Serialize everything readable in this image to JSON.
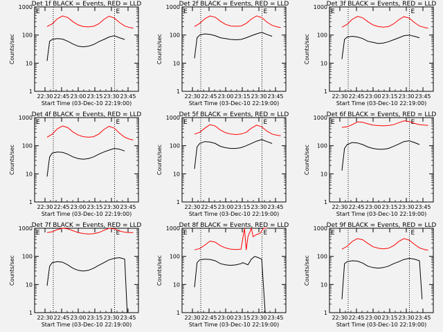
{
  "chart_data": [
    {
      "type": "line",
      "title": "Det 1f BLACK = Events, RED = LLD",
      "xlabel": "Start Time (03-Dec-10 22:19:00)",
      "ylabel": "Counts/sec",
      "ylim": [
        1,
        1000
      ],
      "yscale": "log",
      "x_ticks": [
        "22:30",
        "22:45",
        "23:00",
        "23:15",
        "23:30",
        "23:45"
      ],
      "y_ticks": [
        "1",
        "10",
        "100",
        "1000"
      ],
      "markers": [
        "E",
        "E"
      ],
      "series": [
        {
          "color": "#ff0000",
          "x": [
            0.0,
            0.06,
            0.12,
            0.18,
            0.24,
            0.3,
            0.36,
            0.42,
            0.48,
            0.54,
            0.6,
            0.66,
            0.72,
            0.78,
            0.84,
            0.9,
            0.96,
            1.0
          ],
          "values": [
            200,
            250,
            380,
            480,
            420,
            300,
            230,
            200,
            195,
            205,
            250,
            360,
            470,
            400,
            280,
            210,
            185,
            175
          ]
        },
        {
          "color": "#000000",
          "x": [
            0.0,
            0.03,
            0.06,
            0.12,
            0.18,
            0.24,
            0.3,
            0.36,
            0.42,
            0.48,
            0.54,
            0.6,
            0.66,
            0.72,
            0.78,
            0.84,
            0.9
          ],
          "values": [
            12,
            60,
            70,
            75,
            72,
            60,
            48,
            40,
            38,
            40,
            46,
            58,
            70,
            85,
            95,
            80,
            70
          ]
        }
      ]
    },
    {
      "type": "line",
      "title": "Det 2f BLACK = Events, RED = LLD",
      "xlabel": "Start Time (03-Dec-10 22:19:00)",
      "ylabel": "Counts/sec",
      "ylim": [
        1,
        1000
      ],
      "yscale": "log",
      "x_ticks": [
        "22:30",
        "22:45",
        "23:00",
        "23:15",
        "23:30",
        "23:45"
      ],
      "y_ticks": [
        "1",
        "10",
        "100",
        "1000"
      ],
      "markers": [
        "E",
        "E"
      ],
      "series": [
        {
          "color": "#ff0000",
          "x": [
            0.0,
            0.06,
            0.12,
            0.18,
            0.24,
            0.3,
            0.36,
            0.42,
            0.48,
            0.54,
            0.6,
            0.66,
            0.72,
            0.78,
            0.84,
            0.9,
            0.96,
            1.0
          ],
          "values": [
            200,
            260,
            380,
            480,
            430,
            310,
            240,
            210,
            205,
            210,
            260,
            370,
            480,
            420,
            290,
            220,
            195,
            185
          ]
        },
        {
          "color": "#000000",
          "x": [
            0.0,
            0.03,
            0.06,
            0.12,
            0.18,
            0.24,
            0.3,
            0.36,
            0.42,
            0.48,
            0.54,
            0.6,
            0.66,
            0.72,
            0.78,
            0.84,
            0.9
          ],
          "values": [
            15,
            80,
            100,
            110,
            105,
            95,
            80,
            75,
            70,
            68,
            70,
            80,
            95,
            110,
            125,
            105,
            90
          ]
        }
      ]
    },
    {
      "type": "line",
      "title": "Det 3f BLACK = Events, RED = LLD",
      "xlabel": "Start Time (03-Dec-10 22:19:00)",
      "ylabel": "Counts/sec",
      "ylim": [
        1,
        1000
      ],
      "yscale": "log",
      "x_ticks": [
        "22:30",
        "22:45",
        "23:00",
        "23:15",
        "23:30",
        "23:45"
      ],
      "y_ticks": [
        "1",
        "10",
        "100",
        "1000"
      ],
      "markers": [
        "E",
        "E"
      ],
      "series": [
        {
          "color": "#ff0000",
          "x": [
            0.0,
            0.06,
            0.12,
            0.18,
            0.24,
            0.3,
            0.36,
            0.42,
            0.48,
            0.54,
            0.6,
            0.66,
            0.72,
            0.78,
            0.84,
            0.9,
            0.96,
            1.0
          ],
          "values": [
            190,
            240,
            360,
            460,
            410,
            300,
            230,
            200,
            190,
            200,
            250,
            350,
            450,
            400,
            280,
            210,
            185,
            175
          ]
        },
        {
          "color": "#000000",
          "x": [
            0.0,
            0.03,
            0.06,
            0.12,
            0.18,
            0.24,
            0.3,
            0.36,
            0.42,
            0.48,
            0.54,
            0.6,
            0.66,
            0.72,
            0.78,
            0.84,
            0.9
          ],
          "values": [
            14,
            70,
            85,
            90,
            85,
            75,
            60,
            55,
            50,
            52,
            58,
            68,
            80,
            95,
            100,
            90,
            80
          ]
        }
      ]
    },
    {
      "type": "line",
      "title": "Det 4f BLACK = Events, RED = LLD",
      "xlabel": "Start Time (03-Dec-10 22:19:00)",
      "ylabel": "Counts/sec",
      "ylim": [
        1,
        1000
      ],
      "yscale": "log",
      "x_ticks": [
        "22:30",
        "22:45",
        "23:00",
        "23:15",
        "23:30",
        "23:45"
      ],
      "y_ticks": [
        "1",
        "10",
        "100",
        "1000"
      ],
      "markers": [
        "E",
        "E"
      ],
      "series": [
        {
          "color": "#ff0000",
          "x": [
            0.0,
            0.06,
            0.12,
            0.18,
            0.24,
            0.3,
            0.36,
            0.42,
            0.48,
            0.54,
            0.6,
            0.66,
            0.72,
            0.78,
            0.84,
            0.9,
            0.96,
            1.0
          ],
          "values": [
            200,
            260,
            400,
            500,
            440,
            310,
            240,
            210,
            200,
            210,
            260,
            380,
            490,
            420,
            280,
            200,
            170,
            160
          ]
        },
        {
          "color": "#000000",
          "x": [
            0.0,
            0.03,
            0.06,
            0.12,
            0.18,
            0.24,
            0.3,
            0.36,
            0.42,
            0.48,
            0.54,
            0.6,
            0.66,
            0.72,
            0.78,
            0.84,
            0.9
          ],
          "values": [
            8,
            40,
            55,
            60,
            58,
            50,
            40,
            35,
            33,
            35,
            40,
            50,
            60,
            70,
            80,
            75,
            65
          ]
        }
      ]
    },
    {
      "type": "line",
      "title": "Det 5f BLACK = Events, RED = LLD",
      "xlabel": "Start Time (03-Dec-10 22:19:00)",
      "ylabel": "Counts/sec",
      "ylim": [
        1,
        1000
      ],
      "yscale": "log",
      "x_ticks": [
        "22:30",
        "22:45",
        "23:00",
        "23:15",
        "23:30",
        "23:45"
      ],
      "y_ticks": [
        "1",
        "10",
        "100",
        "1000"
      ],
      "markers": [
        "E",
        "E"
      ],
      "series": [
        {
          "color": "#ff0000",
          "x": [
            0.0,
            0.06,
            0.12,
            0.18,
            0.24,
            0.3,
            0.36,
            0.42,
            0.48,
            0.54,
            0.6,
            0.66,
            0.72,
            0.78,
            0.84,
            0.9,
            0.96,
            1.0
          ],
          "values": [
            260,
            300,
            420,
            560,
            500,
            360,
            290,
            260,
            250,
            260,
            300,
            420,
            540,
            470,
            330,
            260,
            235,
            225
          ]
        },
        {
          "color": "#000000",
          "x": [
            0.0,
            0.03,
            0.06,
            0.12,
            0.18,
            0.24,
            0.3,
            0.36,
            0.42,
            0.48,
            0.54,
            0.6,
            0.66,
            0.72,
            0.78,
            0.84,
            0.9
          ],
          "values": [
            15,
            90,
            120,
            140,
            135,
            120,
            95,
            85,
            80,
            80,
            85,
            100,
            120,
            145,
            165,
            140,
            120
          ]
        }
      ]
    },
    {
      "type": "line",
      "title": "Det 6f BLACK = Events, RED = LLD",
      "xlabel": "Start Time (03-Dec-10 22:19:00)",
      "ylabel": "Counts/sec",
      "ylim": [
        1,
        1000
      ],
      "yscale": "log",
      "x_ticks": [
        "22:30",
        "22:45",
        "23:00",
        "23:15",
        "23:30",
        "23:45"
      ],
      "y_ticks": [
        "1",
        "10",
        "100",
        "1000"
      ],
      "markers": [
        "E",
        "E"
      ],
      "series": [
        {
          "color": "#ff0000",
          "x": [
            0.0,
            0.06,
            0.12,
            0.18,
            0.24,
            0.3,
            0.36,
            0.42,
            0.48,
            0.54,
            0.6,
            0.66,
            0.72,
            0.78,
            0.84,
            0.9,
            0.96,
            1.0
          ],
          "values": [
            450,
            470,
            560,
            700,
            680,
            600,
            540,
            520,
            510,
            520,
            560,
            660,
            760,
            720,
            620,
            560,
            540,
            530
          ]
        },
        {
          "color": "#000000",
          "x": [
            0.0,
            0.03,
            0.06,
            0.12,
            0.18,
            0.24,
            0.3,
            0.36,
            0.42,
            0.48,
            0.54,
            0.6,
            0.66,
            0.72,
            0.78,
            0.84,
            0.9
          ],
          "values": [
            13,
            80,
            110,
            130,
            125,
            110,
            90,
            80,
            75,
            75,
            80,
            95,
            115,
            140,
            150,
            130,
            110
          ]
        }
      ]
    },
    {
      "type": "line",
      "title": "Det 7f BLACK = Events, RED = LLD",
      "xlabel": "Start Time (03-Dec-10 22:19:00)",
      "ylabel": "Counts/sec",
      "ylim": [
        1,
        1000
      ],
      "yscale": "log",
      "x_ticks": [
        "22:30",
        "22:45",
        "23:00",
        "23:15",
        "23:30",
        "23:45"
      ],
      "y_ticks": [
        "1",
        "10",
        "100",
        "1000"
      ],
      "markers": [
        "E",
        "E"
      ],
      "series": [
        {
          "color": "#ff0000",
          "x": [
            0.0,
            0.06,
            0.12,
            0.18,
            0.24,
            0.3,
            0.36,
            0.42,
            0.48,
            0.54,
            0.6,
            0.66,
            0.72,
            0.78,
            0.84,
            0.9,
            0.96,
            1.0
          ],
          "values": [
            700,
            750,
            900,
            1000,
            950,
            820,
            700,
            650,
            620,
            640,
            700,
            850,
            1000,
            950,
            800,
            720,
            700,
            700
          ]
        },
        {
          "color": "#000000",
          "x": [
            0.0,
            0.03,
            0.06,
            0.12,
            0.18,
            0.24,
            0.3,
            0.36,
            0.42,
            0.48,
            0.54,
            0.6,
            0.66,
            0.72,
            0.78,
            0.84,
            0.9,
            0.93
          ],
          "values": [
            9,
            45,
            60,
            65,
            62,
            50,
            38,
            32,
            30,
            32,
            38,
            48,
            60,
            75,
            85,
            90,
            80,
            1
          ]
        }
      ]
    },
    {
      "type": "line",
      "title": "Det 8f BLACK = Events, RED = LLD",
      "xlabel": "Start Time (03-Dec-10 22:19:00)",
      "ylabel": "Counts/sec",
      "ylim": [
        1,
        1000
      ],
      "yscale": "log",
      "x_ticks": [
        "22:30",
        "22:45",
        "23:00",
        "23:15",
        "23:30",
        "23:45"
      ],
      "y_ticks": [
        "1",
        "10",
        "100",
        "1000"
      ],
      "markers": [
        "E",
        "E"
      ],
      "series": [
        {
          "color": "#ff0000",
          "x": [
            0.0,
            0.06,
            0.12,
            0.18,
            0.24,
            0.3,
            0.36,
            0.42,
            0.48,
            0.54,
            0.58,
            0.6,
            0.62,
            0.66,
            0.68,
            0.72,
            0.76,
            0.8,
            0.84
          ],
          "values": [
            170,
            190,
            250,
            350,
            320,
            240,
            200,
            180,
            175,
            180,
            1000,
            170,
            500,
            1000,
            500,
            600,
            650,
            1000,
            1000
          ]
        },
        {
          "color": "#000000",
          "x": [
            0.0,
            0.03,
            0.06,
            0.12,
            0.18,
            0.24,
            0.3,
            0.36,
            0.42,
            0.48,
            0.54,
            0.56,
            0.62,
            0.66,
            0.7,
            0.74,
            0.78,
            0.82
          ],
          "values": [
            8,
            60,
            75,
            80,
            78,
            70,
            55,
            50,
            48,
            50,
            55,
            60,
            50,
            80,
            100,
            90,
            80,
            1
          ]
        }
      ]
    },
    {
      "type": "line",
      "title": "Det 9f BLACK = Events, RED = LLD",
      "xlabel": "Start Time (03-Dec-10 22:19:00)",
      "ylabel": "Counts/sec",
      "ylim": [
        1,
        1000
      ],
      "yscale": "log",
      "x_ticks": [
        "22:30",
        "22:45",
        "23:00",
        "23:15",
        "23:30",
        "23:45"
      ],
      "y_ticks": [
        "1",
        "10",
        "100",
        "1000"
      ],
      "markers": [
        "E",
        "E"
      ],
      "series": [
        {
          "color": "#ff0000",
          "x": [
            0.0,
            0.06,
            0.12,
            0.18,
            0.24,
            0.3,
            0.36,
            0.42,
            0.48,
            0.54,
            0.6,
            0.66,
            0.72,
            0.78,
            0.84,
            0.9,
            0.96,
            1.0
          ],
          "values": [
            180,
            230,
            340,
            430,
            390,
            290,
            220,
            195,
            185,
            195,
            240,
            340,
            430,
            380,
            270,
            200,
            175,
            165
          ]
        },
        {
          "color": "#000000",
          "x": [
            0.0,
            0.03,
            0.06,
            0.12,
            0.18,
            0.24,
            0.3,
            0.36,
            0.42,
            0.48,
            0.54,
            0.6,
            0.66,
            0.72,
            0.78,
            0.84,
            0.9,
            0.93
          ],
          "values": [
            3,
            55,
            65,
            70,
            68,
            58,
            45,
            40,
            38,
            40,
            45,
            55,
            65,
            78,
            85,
            80,
            70,
            3
          ]
        }
      ]
    }
  ]
}
